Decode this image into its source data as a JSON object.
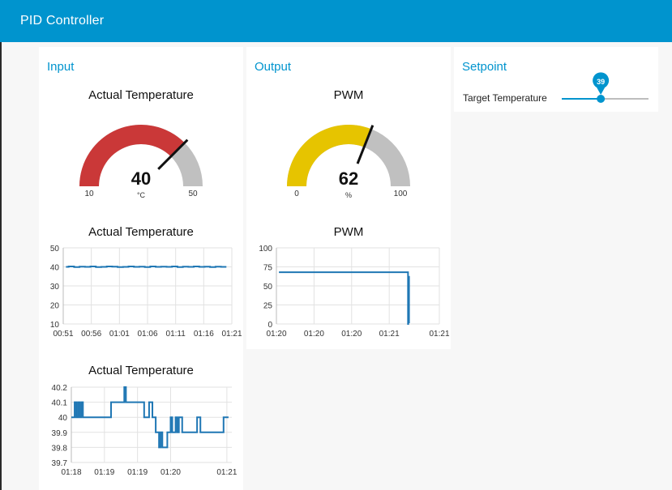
{
  "header": {
    "title": "PID Controller"
  },
  "colors": {
    "accent": "#0094ce",
    "gauge_red": "#ca3838",
    "gauge_yellow": "#e6c400",
    "gauge_track": "#c0c0c0",
    "line": "#1f77b4"
  },
  "input": {
    "title": "Input",
    "gauge": {
      "title": "Actual Temperature",
      "value": 40,
      "display": "40",
      "min": 10,
      "max": 50,
      "min_label": "10",
      "max_label": "50",
      "unit": "°C"
    }
  },
  "output": {
    "title": "Output",
    "gauge": {
      "title": "PWM",
      "value": 62,
      "display": "62",
      "min": 0,
      "max": 100,
      "min_label": "0",
      "max_label": "100",
      "unit": "%"
    }
  },
  "setpoint": {
    "title": "Setpoint",
    "slider": {
      "label": "Target Temperature",
      "value": 39,
      "display": "39",
      "fraction": 0.45
    }
  },
  "chart_data": [
    {
      "id": "temp_long",
      "type": "line",
      "title": "Actual Temperature",
      "ylim": [
        10,
        50
      ],
      "yticks": [
        10,
        20,
        30,
        40,
        50
      ],
      "ytick_labels": [
        "10",
        "20",
        "30",
        "40",
        "50"
      ],
      "xticks": [
        "00:51",
        "00:56",
        "01:01",
        "01:06",
        "01:11",
        "01:16",
        "01:21"
      ],
      "x": [
        0.5,
        1,
        2,
        3,
        4,
        5,
        6,
        7,
        8,
        9,
        10,
        11,
        12,
        13,
        14,
        15,
        16,
        17,
        18,
        19,
        20,
        21,
        22,
        23,
        24,
        25,
        26,
        27,
        28,
        29,
        30
      ],
      "values": [
        40,
        40.2,
        39.9,
        40.1,
        40,
        40.2,
        39.9,
        40,
        40.2,
        40.1,
        39.9,
        40,
        40.2,
        40,
        40.1,
        39.9,
        40.2,
        40,
        40.1,
        40,
        40.2,
        39.9,
        40.1,
        40,
        40.2,
        40,
        40.1,
        39.9,
        40.1,
        40,
        40
      ],
      "xrange": [
        0,
        31
      ]
    },
    {
      "id": "pwm",
      "type": "line",
      "title": "PWM",
      "ylim": [
        0,
        100
      ],
      "yticks": [
        0,
        25,
        50,
        75,
        100
      ],
      "ytick_labels": [
        "0",
        "25",
        "50",
        "75",
        "100"
      ],
      "xticks": [
        "01:20",
        "01:20",
        "01:20",
        "01:21",
        "01:21"
      ],
      "x": [
        0.1,
        5.25,
        5.25,
        5.26,
        5.27,
        5.28,
        5.29
      ],
      "values": [
        68,
        68,
        0,
        60,
        5,
        62,
        1
      ],
      "xrange": [
        0,
        6.5
      ],
      "xtick_pos": [
        0,
        1.5,
        3,
        4.5,
        6.5
      ]
    },
    {
      "id": "temp_short",
      "type": "line",
      "title": "Actual Temperature",
      "ylim": [
        39.7,
        40.2
      ],
      "yticks": [
        39.7,
        39.8,
        39.9,
        40,
        40.1,
        40.2
      ],
      "ytick_labels": [
        "39.7",
        "39.8",
        "39.9",
        "40",
        "40.1",
        "40.2"
      ],
      "xticks": [
        "01:18",
        "01:19",
        "01:19",
        "01:20",
        "01:21"
      ],
      "x": [
        0,
        0.05,
        0.1,
        0.15,
        0.2,
        0.25,
        0.3,
        0.35,
        0.4,
        0.45,
        0.5,
        1.1,
        1.2,
        1.3,
        1.6,
        1.65,
        1.8,
        2.0,
        2.2,
        2.3,
        2.35,
        2.4,
        2.45,
        2.5,
        2.55,
        2.6,
        2.65,
        2.7,
        2.75,
        2.8,
        2.85,
        2.9,
        2.95,
        3.0,
        3.05,
        3.1,
        3.15,
        3.2,
        3.25,
        3.3,
        3.35,
        3.4,
        3.45,
        3.5,
        3.6,
        3.8,
        3.9,
        4.0,
        4.2,
        4.4,
        4.6,
        4.7,
        4.75
      ],
      "values": [
        40,
        40,
        40.1,
        40,
        40.1,
        40,
        40.1,
        40,
        40,
        40,
        40,
        40,
        40.1,
        40.1,
        40.2,
        40.1,
        40.1,
        40.1,
        40,
        40,
        40.1,
        40.1,
        40,
        40,
        39.9,
        39.9,
        39.8,
        39.9,
        39.8,
        39.8,
        39.8,
        39.9,
        39.9,
        40,
        39.9,
        39.9,
        40,
        39.9,
        40,
        40,
        39.9,
        39.9,
        39.9,
        39.9,
        39.9,
        40,
        39.9,
        39.9,
        39.9,
        39.9,
        40,
        40,
        40
      ],
      "xrange": [
        0,
        4.85
      ],
      "xtick_pos": [
        0,
        1,
        2,
        3,
        4.7
      ]
    }
  ]
}
